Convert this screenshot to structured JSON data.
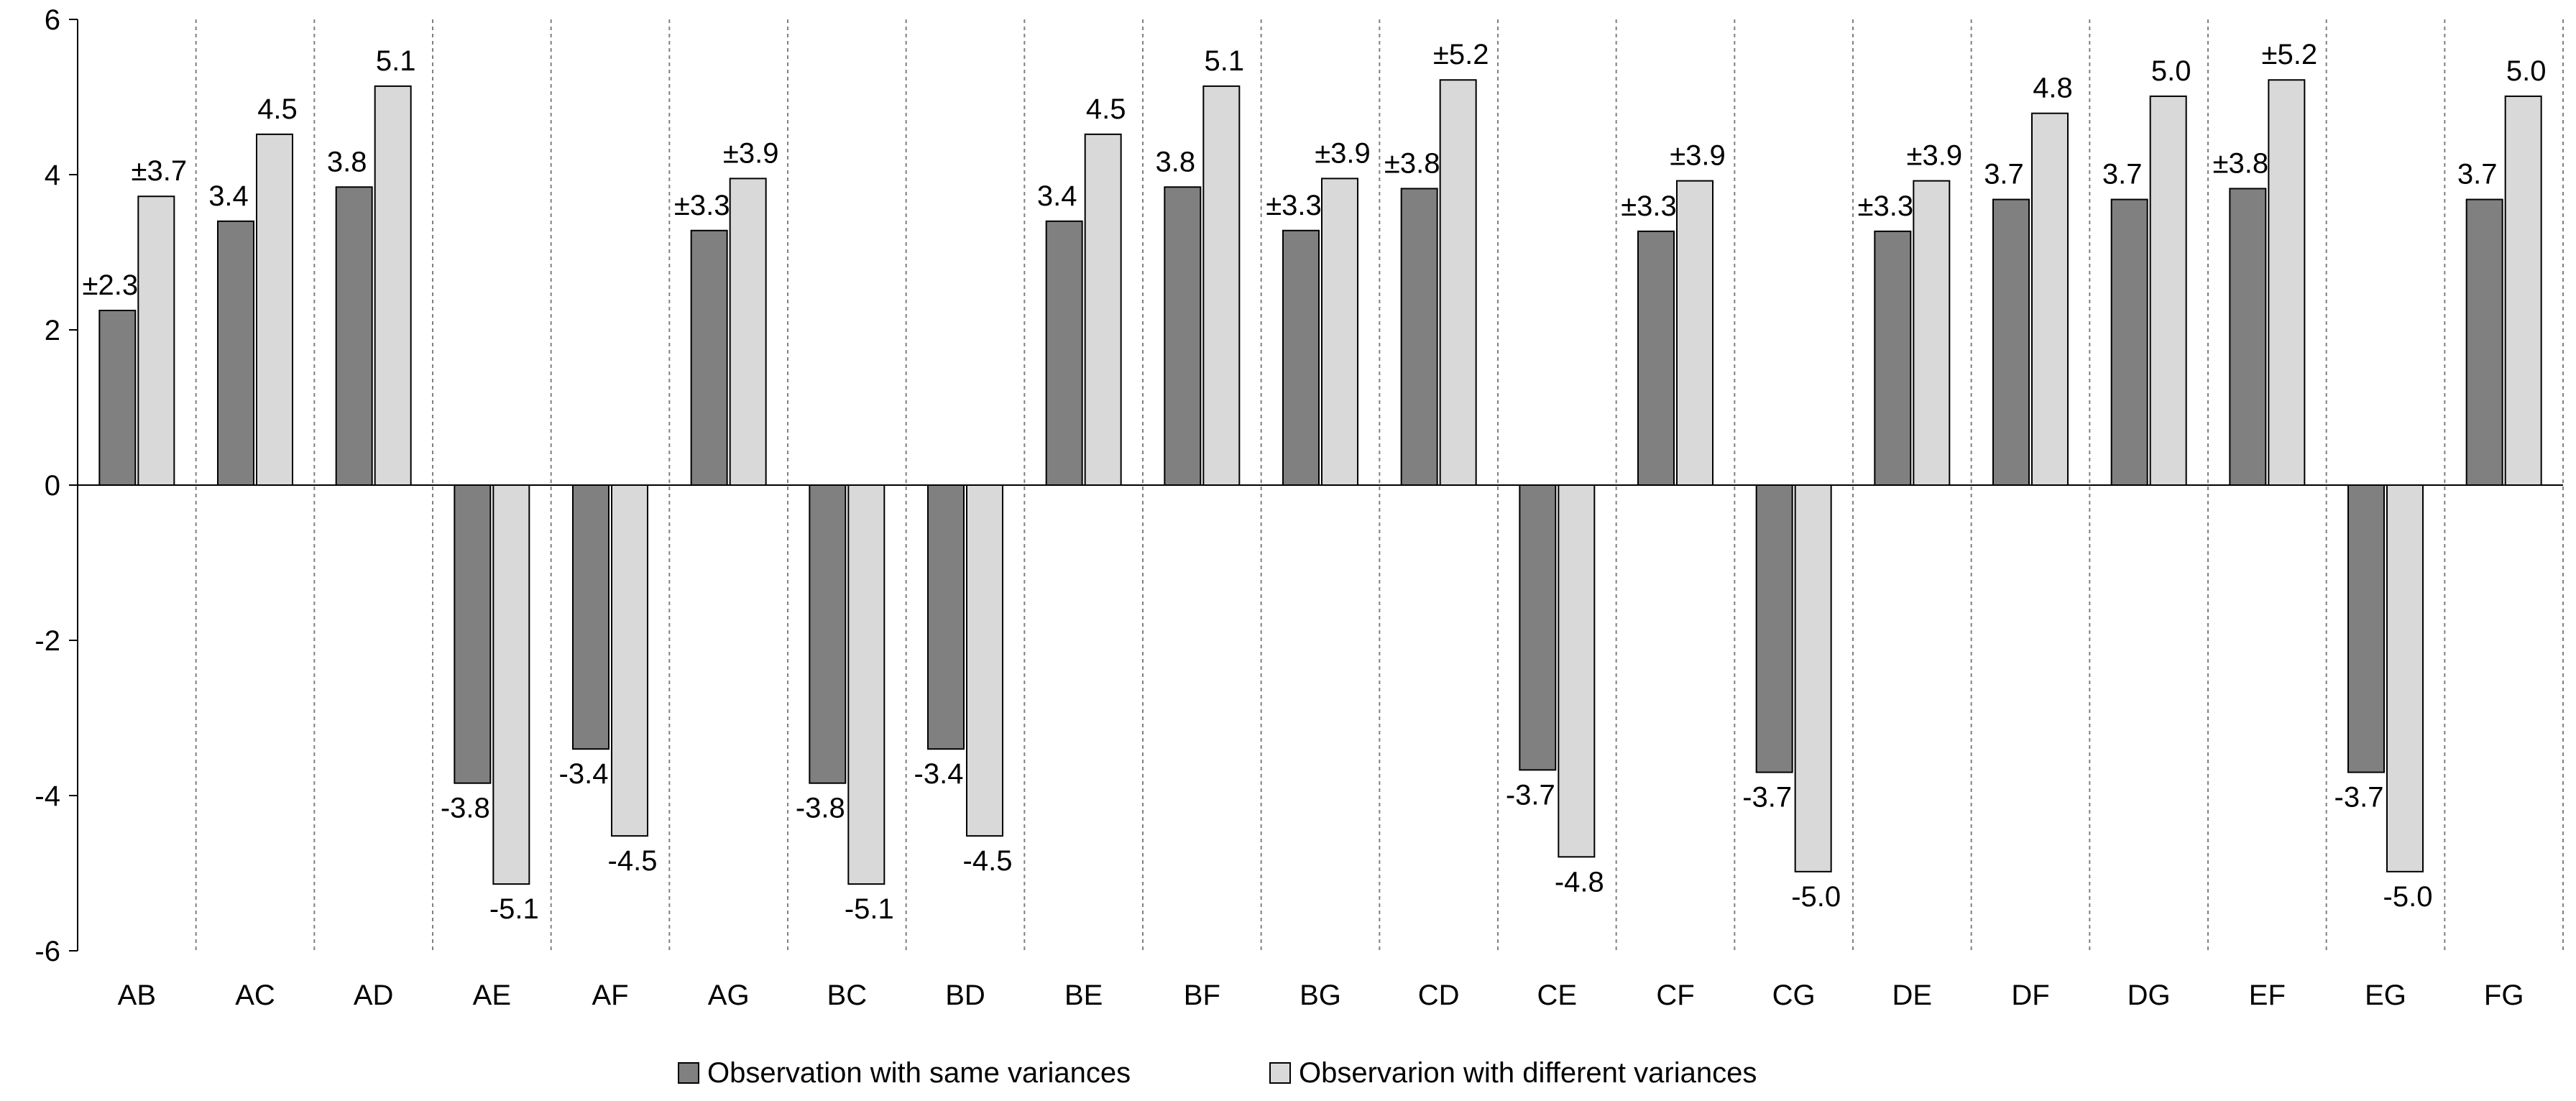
{
  "chart_data": {
    "type": "bar",
    "title": "",
    "xlabel": "",
    "ylabel": "",
    "ylim": [
      -6,
      6
    ],
    "yticks": [
      -6,
      -4,
      -2,
      0,
      2,
      4,
      6
    ],
    "ytick_labels": [
      "-6",
      "-4",
      "-2",
      "0",
      "2",
      "4",
      "6"
    ],
    "grid": "vertical dashed separators between categories",
    "legend_position": "bottom",
    "categories": [
      "AB",
      "AC",
      "AD",
      "AE",
      "AF",
      "AG",
      "BC",
      "BD",
      "BE",
      "BF",
      "BG",
      "CD",
      "CE",
      "CF",
      "CG",
      "DE",
      "DF",
      "DG",
      "EF",
      "EG",
      "FG"
    ],
    "series": [
      {
        "name": "Observation with same variances",
        "color": "#808080",
        "values": [
          2.25,
          3.4,
          3.84,
          -3.84,
          -3.4,
          3.28,
          -3.84,
          -3.4,
          3.4,
          3.84,
          3.28,
          3.82,
          -3.67,
          3.27,
          -3.7,
          3.27,
          3.68,
          3.68,
          3.82,
          -3.7,
          3.68
        ],
        "labels": [
          "±2.3",
          "3.4",
          "3.8",
          "-3.8",
          "-3.4",
          "±3.3",
          "-3.8",
          "-3.4",
          "3.4",
          "3.8",
          "±3.3",
          "±3.8",
          "-3.7",
          "±3.3",
          "-3.7",
          "±3.3",
          "3.7",
          "3.7",
          "±3.8",
          "-3.7",
          "3.7"
        ]
      },
      {
        "name": "Observarion with different variances",
        "color": "#d9d9d9",
        "values": [
          3.72,
          4.52,
          5.14,
          -5.14,
          -4.52,
          3.95,
          -5.14,
          -4.52,
          4.52,
          5.14,
          3.95,
          5.22,
          -4.79,
          3.92,
          -4.98,
          3.92,
          4.79,
          5.01,
          5.22,
          -4.98,
          5.01
        ],
        "labels": [
          "±3.7",
          "4.5",
          "5.1",
          "-5.1",
          "-4.5",
          "±3.9",
          "-5.1",
          "-4.5",
          "4.5",
          "5.1",
          "±3.9",
          "±5.2",
          "-4.8",
          "±3.9",
          "-5.0",
          "±3.9",
          "4.8",
          "5.0",
          "±5.2",
          "-5.0",
          "5.0"
        ]
      }
    ]
  }
}
